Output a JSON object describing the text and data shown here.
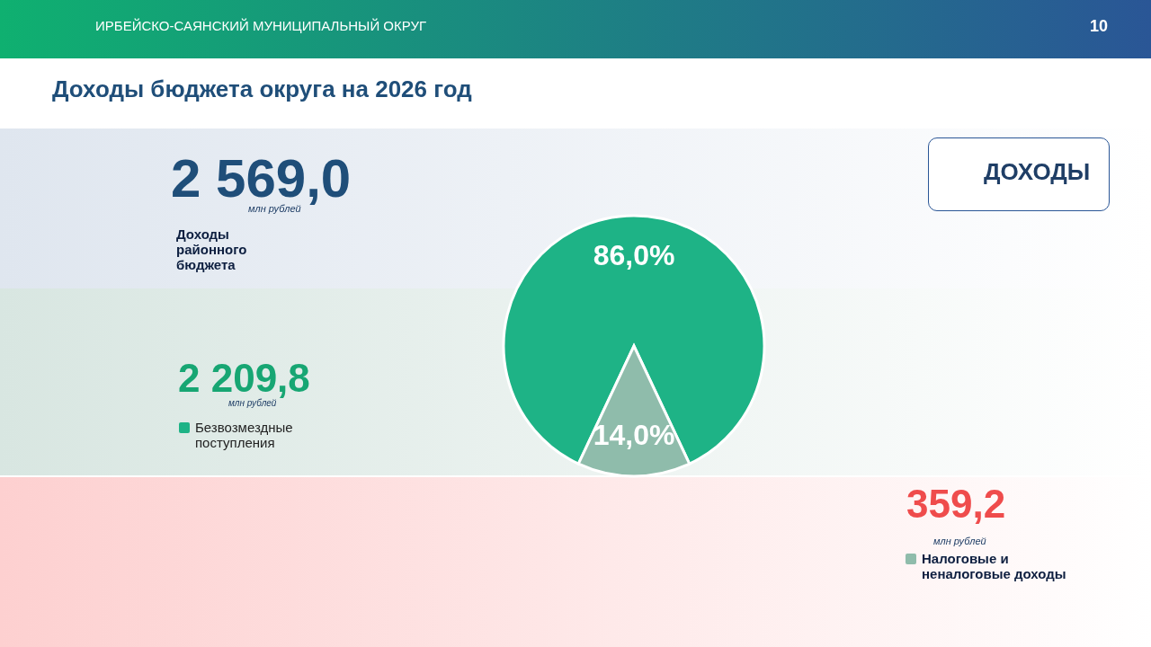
{
  "chart_data": {
    "type": "pie",
    "title": "Доходы бюджета округа на 2026 год",
    "categories": [
      "Безвозмездные поступления",
      "Налоговые и неналоговые доходы"
    ],
    "values": [
      86.0,
      14.0
    ],
    "value_labels": [
      "86,0%",
      "14,0%"
    ],
    "colors": [
      "#1eb386",
      "#8fbcab"
    ],
    "legend": "left",
    "annotations": [
      "ИРБЕЙСКО-САЯНСКИЙ МУНИЦИПАЛЬНЫЙ ОКРУГ",
      "10",
      "ДОХОДЫ",
      "2 569,0",
      "млн рублей",
      "Доходы районного бюджета",
      "2 209,8",
      "млн рублей",
      "359,2",
      "млн рублей"
    ]
  }
}
